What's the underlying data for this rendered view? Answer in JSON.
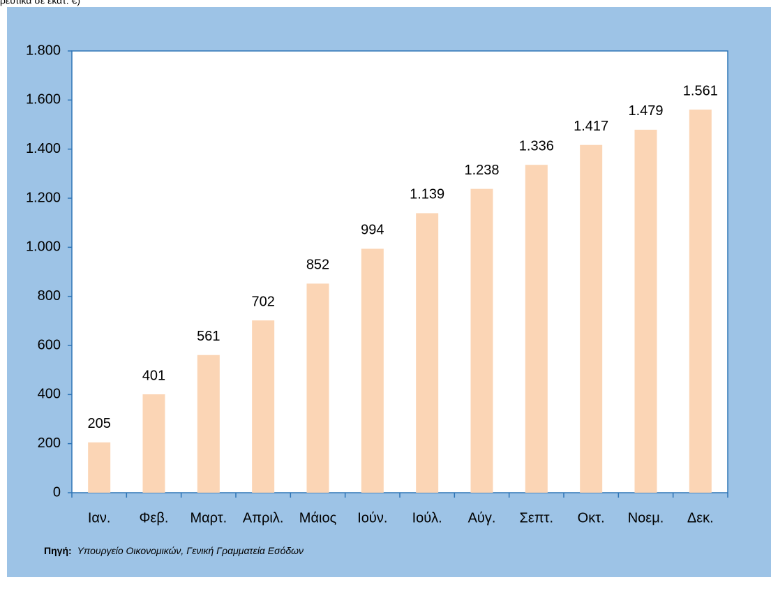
{
  "caption": "ρευτικά σε εκατ. €)",
  "source": {
    "label": "Πηγή:",
    "text": "Υπουργείο Οικονομικών, Γενική Γραμματεία Εσόδων"
  },
  "chart_data": {
    "type": "bar",
    "categories": [
      "Ιαν.",
      "Φεβ.",
      "Μαρτ.",
      "Απριλ.",
      "Μάιος",
      "Ιούν.",
      "Ιούλ.",
      "Αύγ.",
      "Σεπτ.",
      "Οκτ.",
      "Νοεμ.",
      "Δεκ."
    ],
    "values": [
      205,
      401,
      561,
      702,
      852,
      994,
      1139,
      1238,
      1336,
      1417,
      1479,
      1561
    ],
    "value_labels": [
      "205",
      "401",
      "561",
      "702",
      "852",
      "994",
      "1.139",
      "1.238",
      "1.336",
      "1.417",
      "1.479",
      "1.561"
    ],
    "color": "#fbd5b5",
    "ylim": [
      0,
      1800
    ],
    "yticks": [
      0,
      200,
      400,
      600,
      800,
      {
        "value": 1000,
        "label": "1.000"
      },
      {
        "value": 1200,
        "label": "1.200"
      },
      {
        "value": 1400,
        "label": "1.400"
      },
      {
        "value": 1600,
        "label": "1.600"
      },
      {
        "value": 1800,
        "label": "1.800"
      }
    ],
    "grid": false
  }
}
